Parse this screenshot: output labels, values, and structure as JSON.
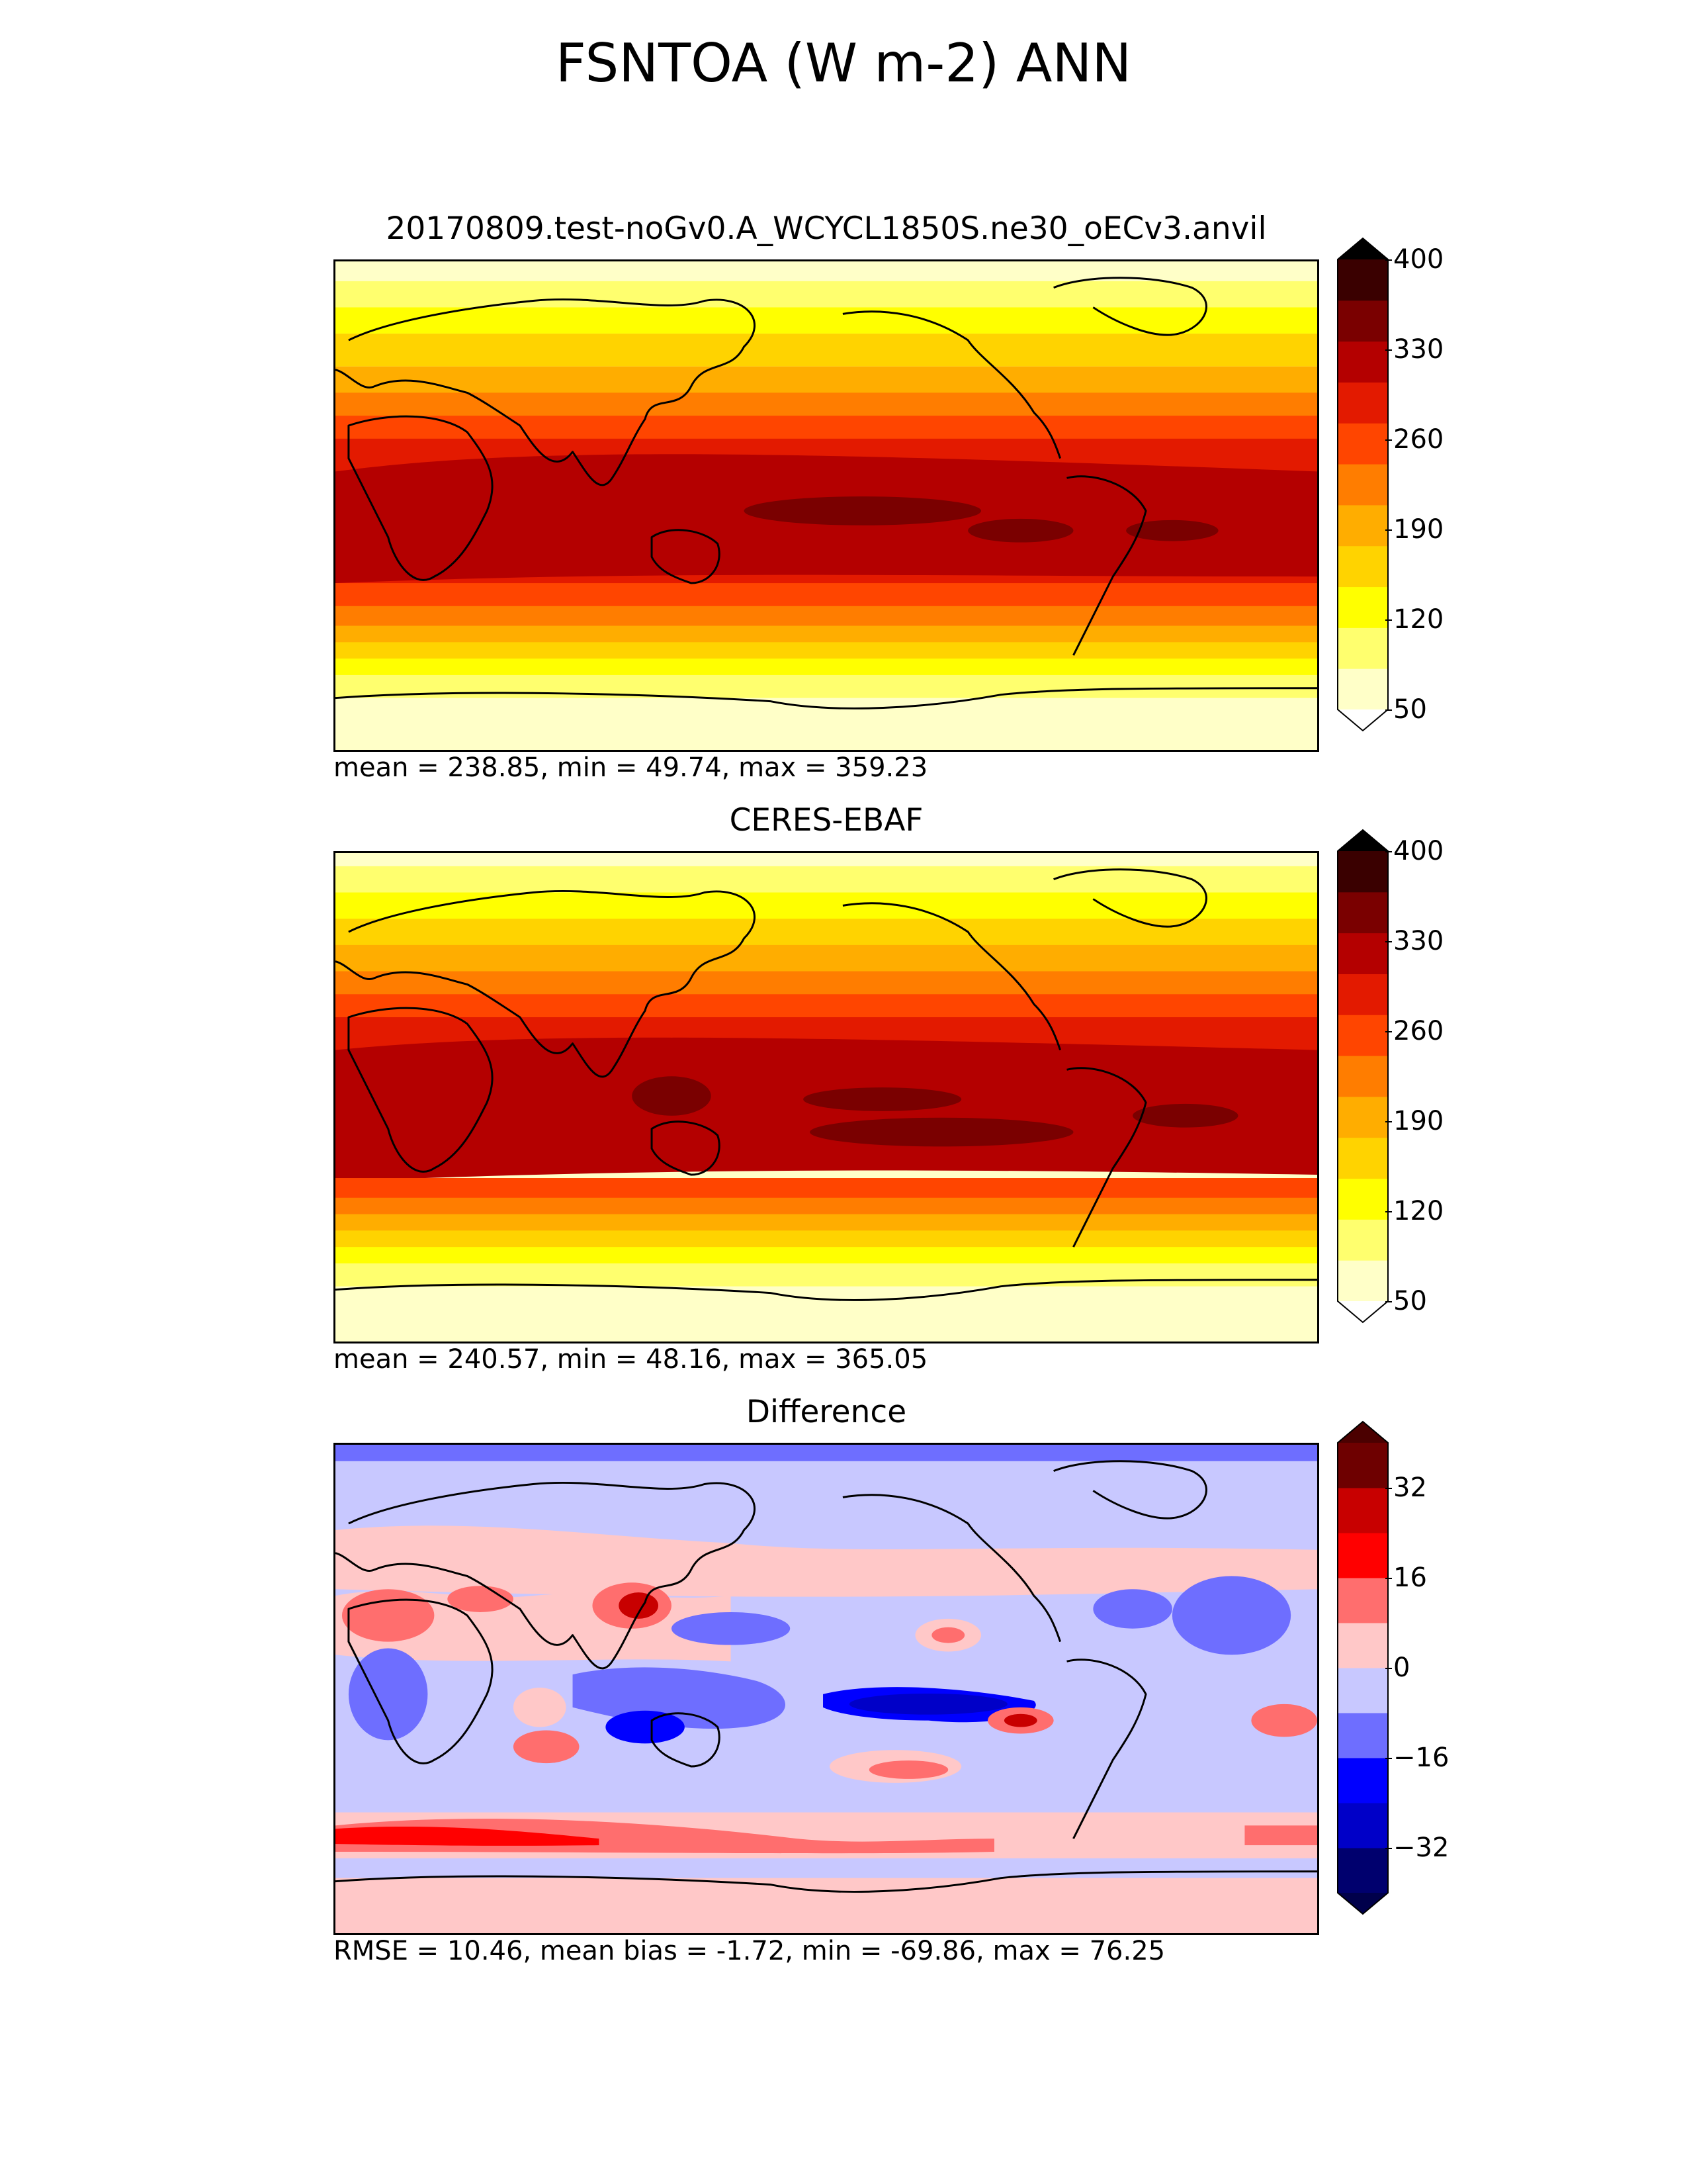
{
  "title": "FSNTOA (W m-2) ANN",
  "panels": [
    {
      "id": "test",
      "title": "20170809.test-noGv0.A_WCYCL1850S.ne30_oECv3.anvil",
      "stats": "mean = 238.85, min = 49.74, max = 359.23",
      "colorbar": {
        "min": 50,
        "max": 400,
        "levels": [
          50,
          85,
          120,
          155,
          190,
          225,
          260,
          295,
          330,
          365,
          400
        ],
        "colors": [
          "#ffffc8",
          "#ffff6e",
          "#ffff00",
          "#ffd300",
          "#ffad00",
          "#ff7d00",
          "#ff4500",
          "#e31a00",
          "#b40000",
          "#7a0000",
          "#3a0000"
        ],
        "extend_low_color": "#ffffff",
        "extend_high_color": "#000000",
        "tick_labels": [
          "50",
          "120",
          "190",
          "260",
          "330",
          "400"
        ],
        "tick_values": [
          50,
          120,
          190,
          260,
          330,
          400
        ]
      }
    },
    {
      "id": "reference",
      "title": "CERES-EBAF",
      "stats": "mean = 240.57, min = 48.16, max = 365.05",
      "colorbar": {
        "min": 50,
        "max": 400,
        "levels": [
          50,
          85,
          120,
          155,
          190,
          225,
          260,
          295,
          330,
          365,
          400
        ],
        "colors": [
          "#ffffc8",
          "#ffff6e",
          "#ffff00",
          "#ffd300",
          "#ffad00",
          "#ff7d00",
          "#ff4500",
          "#e31a00",
          "#b40000",
          "#7a0000",
          "#3a0000"
        ],
        "extend_low_color": "#ffffff",
        "extend_high_color": "#000000",
        "tick_labels": [
          "50",
          "120",
          "190",
          "260",
          "330",
          "400"
        ],
        "tick_values": [
          50,
          120,
          190,
          260,
          330,
          400
        ]
      }
    },
    {
      "id": "difference",
      "title": "Difference",
      "stats": "RMSE = 10.46, mean bias = -1.72, min = -69.86, max = 76.25",
      "colorbar": {
        "min": -40,
        "max": 40,
        "levels": [
          -40,
          -32,
          -24,
          -16,
          -8,
          0,
          8,
          16,
          24,
          32,
          40
        ],
        "colors": [
          "#00006e",
          "#0000c8",
          "#0000ff",
          "#6e6eff",
          "#c8c8ff",
          "#ffc8c8",
          "#ff6e6e",
          "#ff0000",
          "#c80000",
          "#6e0000"
        ],
        "extend_low_color": "#00004b",
        "extend_high_color": "#4b0000",
        "tick_labels": [
          "−32",
          "−16",
          "0",
          "16",
          "32"
        ],
        "tick_values": [
          -32,
          -16,
          0,
          16,
          32
        ]
      }
    }
  ]
}
